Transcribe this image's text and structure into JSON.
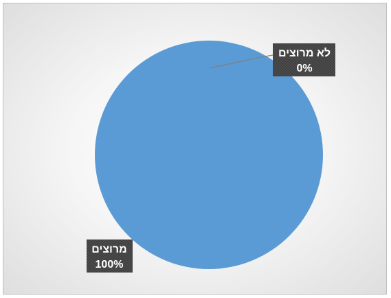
{
  "chart_data": {
    "type": "pie",
    "categories": [
      "מרוצים",
      "לא מרוצים"
    ],
    "values": [
      100,
      0
    ],
    "data_labels": [
      {
        "category": "מרוצים",
        "percent": "100%"
      },
      {
        "category": "לא מרוצים",
        "percent": "0%"
      }
    ],
    "colors": {
      "slice": "#5b9bd5",
      "label_bg": "#404040",
      "label_text": "#ffffff",
      "leader_line": "#7f7f7f"
    },
    "title": "",
    "legend": "none"
  }
}
